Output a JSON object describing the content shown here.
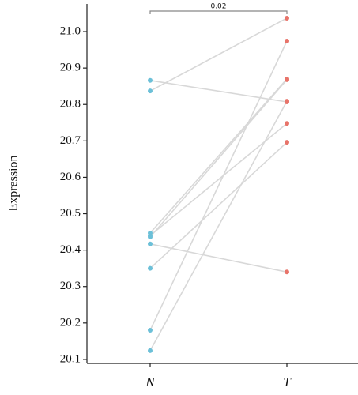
{
  "chart_data": {
    "type": "paired",
    "ylabel": "Expression",
    "annotation": "0.02",
    "categories": [
      "N",
      "T"
    ],
    "colors": [
      "#6cc0d8",
      "#e8746a"
    ],
    "values": [
      [
        20.866,
        20.837,
        20.447,
        20.44,
        20.436,
        20.417,
        20.35,
        20.18,
        20.124
      ],
      [
        20.807,
        21.037,
        20.87,
        20.748,
        20.868,
        20.34,
        20.696,
        20.974,
        20.809
      ]
    ],
    "ylim": [
      20.089,
      21.076
    ],
    "yticks": [
      20.1,
      20.2,
      20.3,
      20.4,
      20.5,
      20.6,
      20.7,
      20.8,
      20.9,
      {
        "value": 21,
        "label": "21.0"
      }
    ]
  }
}
